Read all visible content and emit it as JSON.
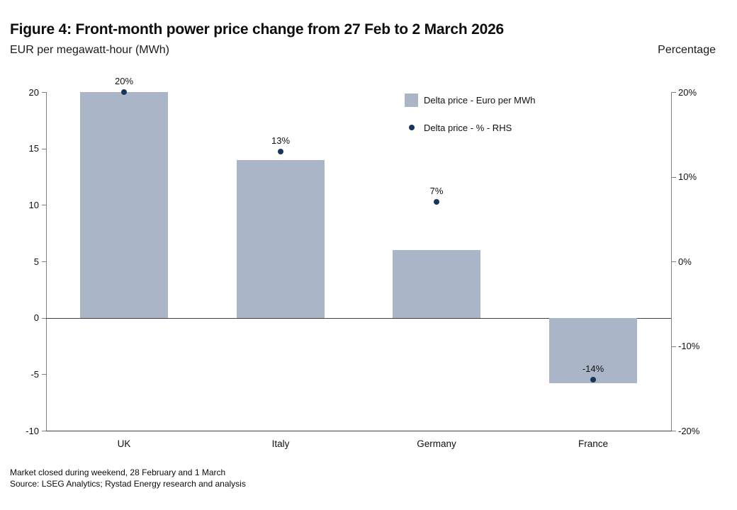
{
  "header": {
    "title": "Figure 4: Front-month power price change from 27 Feb to 2 March 2026",
    "left_axis_title": "EUR per megawatt-hour (MWh)",
    "right_axis_title": "Percentage"
  },
  "legend": {
    "items": [
      {
        "marker": "square",
        "label": "Delta price - Euro per MWh",
        "color": "#aab5c7"
      },
      {
        "marker": "dot",
        "label": "Delta price - % - RHS",
        "color": "#17365c"
      }
    ]
  },
  "chart_data": {
    "type": "bar",
    "categories": [
      "UK",
      "Italy",
      "Germany",
      "France"
    ],
    "series": [
      {
        "name": "Delta price - Euro per MWh",
        "type": "bar",
        "axis": "left",
        "values": [
          20,
          14,
          6,
          -5.8
        ],
        "color": "#aab5c7"
      },
      {
        "name": "Delta price - % - RHS",
        "type": "scatter",
        "axis": "right",
        "values": [
          20,
          13,
          7,
          -14
        ],
        "labels": [
          "20%",
          "13%",
          "7%",
          "-14%"
        ],
        "color": "#17365c"
      }
    ],
    "left_axis": {
      "min": -10,
      "max": 20,
      "tick_values": [
        20,
        15,
        10,
        5,
        0,
        -5,
        -10
      ],
      "tick_labels": [
        "20",
        "15",
        "10",
        "5",
        "0",
        "-5",
        "-10"
      ]
    },
    "right_axis": {
      "min": -20,
      "max": 20,
      "tick_values": [
        20,
        10,
        0,
        -10,
        -20
      ],
      "tick_labels": [
        "20%",
        "10%",
        "0%",
        "-10%",
        "-20%"
      ]
    },
    "grid": false,
    "legend_position": "top-center-inside",
    "colors": {
      "bar": "#aab5c7",
      "dot": "#17365c",
      "axis": "#808080",
      "zero_line": "#404040"
    }
  },
  "footnotes": [
    "Market closed during weekend, 28 February and 1 March",
    "Source: LSEG Analytics; Rystad Energy research and analysis"
  ]
}
